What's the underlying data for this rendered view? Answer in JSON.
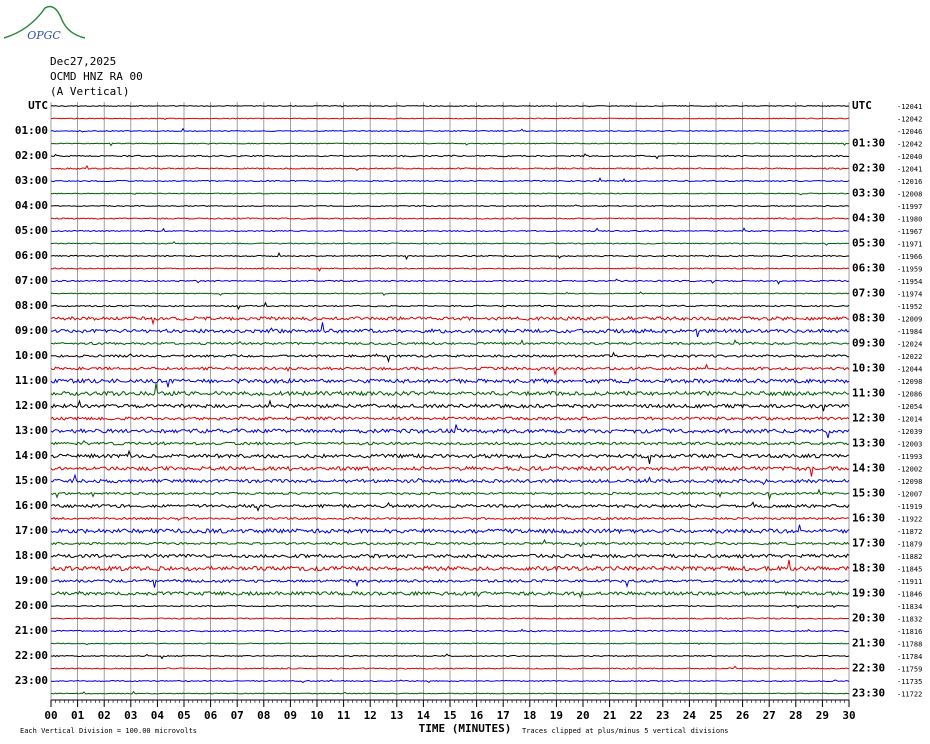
{
  "header": {
    "logo": "OPGC",
    "date": "Dec27,2025",
    "station": "OCMD HNZ RA 00",
    "component": "(A Vertical)"
  },
  "left_labels": [
    "UTC",
    "01:00",
    "02:00",
    "03:00",
    "04:00",
    "05:00",
    "06:00",
    "07:00",
    "08:00",
    "09:00",
    "10:00",
    "11:00",
    "12:00",
    "13:00",
    "14:00",
    "15:00",
    "16:00",
    "17:00",
    "18:00",
    "19:00",
    "20:00",
    "21:00",
    "22:00",
    "23:00"
  ],
  "right_labels": [
    "UTC",
    "01:30",
    "02:30",
    "03:30",
    "04:30",
    "05:30",
    "06:30",
    "07:30",
    "08:30",
    "09:30",
    "10:30",
    "11:30",
    "12:30",
    "13:30",
    "14:30",
    "15:30",
    "16:30",
    "17:30",
    "18:30",
    "19:30",
    "20:30",
    "21:30",
    "22:30",
    "23:30"
  ],
  "right_values": [
    "-12041",
    "-12042",
    "-12046",
    "-12042",
    "-12040",
    "-12041",
    "-12016",
    "-12008",
    "-11997",
    "-11980",
    "-11967",
    "-11971",
    "-11966",
    "-11959",
    "-11954",
    "-11974",
    "-11952",
    "-12009",
    "-11984",
    "-12024",
    "-12022",
    "-12044",
    "-12098",
    "-12086",
    "-12054",
    "-12014",
    "-12039",
    "-12003",
    "-11993",
    "-12002",
    "-12098",
    "-12007",
    "-11919",
    "-11922",
    "-11872",
    "-11879",
    "-11882",
    "-11845",
    "-11911",
    "-11846",
    "-11834",
    "-11832",
    "-11816",
    "-11788",
    "-11784",
    "-11759",
    "-11735",
    "-11722"
  ],
  "trace_colors": [
    "#000000",
    "#e00000",
    "#0000e0",
    "#006000"
  ],
  "x_axis": {
    "title": "TIME (MINUTES)",
    "ticks": [
      "00",
      "01",
      "02",
      "03",
      "04",
      "05",
      "06",
      "07",
      "08",
      "09",
      "10",
      "11",
      "12",
      "13",
      "14",
      "15",
      "16",
      "17",
      "18",
      "19",
      "20",
      "21",
      "22",
      "23",
      "24",
      "25",
      "26",
      "27",
      "28",
      "29",
      "30"
    ]
  },
  "footer": {
    "scale": "Each Vertical Division =  100.00 microvolts",
    "clip": "Traces clipped at plus/minus 5 vertical divisions"
  }
}
